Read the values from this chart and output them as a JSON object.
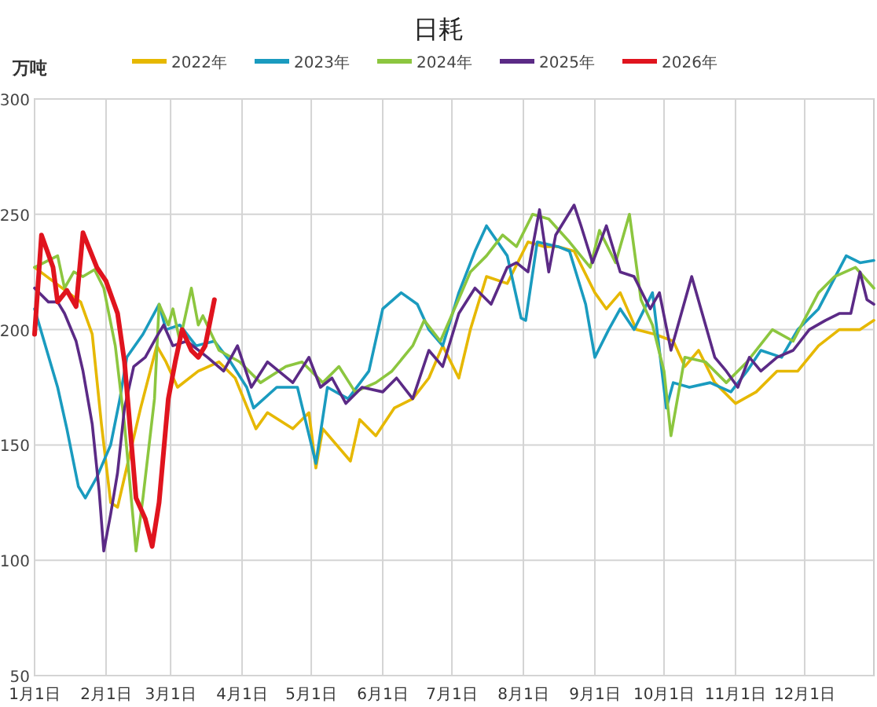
{
  "chart_data": {
    "type": "line",
    "title": "日耗",
    "ylabel": "万吨",
    "legend": "top",
    "grid": true,
    "xlim": [
      "--01-01",
      "--12-31"
    ],
    "ylim": [
      50,
      300
    ],
    "yticks": [
      50,
      100,
      150,
      200,
      250,
      300
    ],
    "xticks": [
      {
        "value": "--01-01",
        "label": "1月1日"
      },
      {
        "value": "--02-01",
        "label": "2月1日"
      },
      {
        "value": "--03-01",
        "label": "3月1日"
      },
      {
        "value": "--04-01",
        "label": "4月1日"
      },
      {
        "value": "--05-01",
        "label": "5月1日"
      },
      {
        "value": "--06-01",
        "label": "6月1日"
      },
      {
        "value": "--07-01",
        "label": "7月1日"
      },
      {
        "value": "--08-01",
        "label": "8月1日"
      },
      {
        "value": "--09-01",
        "label": "9月1日"
      },
      {
        "value": "--10-01",
        "label": "10月1日"
      },
      {
        "value": "--11-01",
        "label": "11月1日"
      },
      {
        "value": "--12-01",
        "label": "12月1日"
      }
    ],
    "series": [
      {
        "name": "2022年",
        "color": "#e6b800",
        "x": [
          "--01-01",
          "--01-21",
          "--01-26",
          "--01-30",
          "--02-03",
          "--02-06",
          "--02-09",
          "--02-16",
          "--02-23",
          "--02-27",
          "--03-04",
          "--03-13",
          "--03-22",
          "--03-29",
          "--04-07",
          "--04-12",
          "--04-23",
          "--04-30",
          "--05-03",
          "--05-06",
          "--05-18",
          "--05-22",
          "--05-29",
          "--06-06",
          "--06-14",
          "--06-21",
          "--06-27",
          "--07-04",
          "--07-09",
          "--07-16",
          "--07-25",
          "--08-03",
          "--08-10",
          "--08-16",
          "--08-23",
          "--09-01",
          "--09-06",
          "--09-12",
          "--09-19",
          "--09-27",
          "--10-05",
          "--10-10",
          "--10-16",
          "--10-23",
          "--11-01",
          "--11-10",
          "--11-19",
          "--11-28",
          "--12-07",
          "--12-16",
          "--12-25",
          "--12-31"
        ],
        "values": [
          227,
          212,
          198,
          159,
          125,
          123,
          136,
          166,
          193,
          186,
          175,
          182,
          186,
          179,
          157,
          164,
          157,
          164,
          140,
          157,
          143,
          161,
          154,
          166,
          170,
          179,
          193,
          179,
          200,
          223,
          220,
          238,
          236,
          236,
          234,
          216,
          209,
          216,
          200,
          198,
          195,
          184,
          191,
          177,
          168,
          173,
          182,
          182,
          193,
          200,
          200,
          204
        ]
      },
      {
        "name": "2023年",
        "color": "#1a9bbf",
        "x": [
          "--01-01",
          "--01-11",
          "--01-15",
          "--01-20",
          "--01-23",
          "--01-28",
          "--02-03",
          "--02-07",
          "--02-10",
          "--02-17",
          "--02-24",
          "--02-27",
          "--03-05",
          "--03-12",
          "--03-20",
          "--03-27",
          "--04-03",
          "--04-06",
          "--04-16",
          "--04-25",
          "--05-03",
          "--05-08",
          "--05-17",
          "--05-26",
          "--06-01",
          "--06-09",
          "--06-16",
          "--06-21",
          "--06-27",
          "--07-04",
          "--07-11",
          "--07-16",
          "--07-25",
          "--07-31",
          "--08-02",
          "--08-07",
          "--08-16",
          "--08-21",
          "--08-28",
          "--09-01",
          "--09-07",
          "--09-12",
          "--09-18",
          "--09-26",
          "--10-02",
          "--10-05",
          "--10-12",
          "--10-21",
          "--10-30",
          "--11-06",
          "--11-12",
          "--11-21",
          "--11-28",
          "--12-07",
          "--12-19",
          "--12-25",
          "--12-31"
        ],
        "values": [
          209,
          175,
          157,
          132,
          127,
          136,
          150,
          170,
          188,
          198,
          211,
          200,
          202,
          193,
          195,
          186,
          175,
          166,
          175,
          175,
          142,
          175,
          170,
          182,
          209,
          216,
          211,
          200,
          193,
          216,
          234,
          245,
          232,
          205,
          204,
          238,
          236,
          234,
          211,
          188,
          200,
          209,
          200,
          216,
          166,
          177,
          175,
          177,
          173,
          182,
          191,
          188,
          200,
          209,
          232,
          229,
          230
        ]
      },
      {
        "name": "2024年",
        "color": "#8cc63f",
        "x": [
          "--01-01",
          "--01-11",
          "--01-14",
          "--01-18",
          "--01-22",
          "--01-27",
          "--01-31",
          "--02-05",
          "--02-09",
          "--02-14",
          "--02-17",
          "--02-22",
          "--02-24",
          "--02-28",
          "--03-02",
          "--03-05",
          "--03-10",
          "--03-13",
          "--03-15",
          "--03-22",
          "--03-31",
          "--04-09",
          "--04-20",
          "--04-27",
          "--05-06",
          "--05-13",
          "--05-20",
          "--05-29",
          "--06-05",
          "--06-14",
          "--06-19",
          "--06-26",
          "--07-03",
          "--07-09",
          "--07-16",
          "--07-23",
          "--07-29",
          "--08-05",
          "--08-12",
          "--08-21",
          "--08-30",
          "--09-03",
          "--09-10",
          "--09-16",
          "--09-21",
          "--09-26",
          "--10-01",
          "--10-04",
          "--10-10",
          "--10-19",
          "--10-28",
          "--11-06",
          "--11-17",
          "--11-26",
          "--12-07",
          "--12-14",
          "--12-23",
          "--12-31"
        ],
        "values": [
          227,
          232,
          218,
          225,
          223,
          226,
          218,
          193,
          159,
          104,
          127,
          170,
          211,
          202,
          209,
          195,
          218,
          202,
          206,
          191,
          186,
          177,
          184,
          186,
          177,
          184,
          173,
          177,
          182,
          193,
          204,
          195,
          211,
          225,
          232,
          241,
          236,
          250,
          248,
          238,
          227,
          243,
          229,
          250,
          213,
          202,
          182,
          154,
          188,
          186,
          177,
          186,
          200,
          195,
          216,
          223,
          227,
          218
        ]
      },
      {
        "name": "2025年",
        "color": "#5b2a86",
        "x": [
          "--01-01",
          "--01-07",
          "--01-11",
          "--01-14",
          "--01-19",
          "--01-22",
          "--01-26",
          "--01-29",
          "--01-31",
          "--02-03",
          "--02-06",
          "--02-09",
          "--02-13",
          "--02-18",
          "--02-23",
          "--02-26",
          "--03-02",
          "--03-08",
          "--03-17",
          "--03-24",
          "--03-30",
          "--04-05",
          "--04-12",
          "--04-23",
          "--04-30",
          "--05-05",
          "--05-10",
          "--05-16",
          "--05-23",
          "--06-01",
          "--06-07",
          "--06-14",
          "--06-21",
          "--06-27",
          "--07-04",
          "--07-11",
          "--07-18",
          "--07-25",
          "--07-29",
          "--08-03",
          "--08-08",
          "--08-12",
          "--08-15",
          "--08-23",
          "--08-26",
          "--08-31",
          "--09-06",
          "--09-12",
          "--09-18",
          "--09-25",
          "--09-29",
          "--10-04",
          "--10-13",
          "--10-17",
          "--10-23",
          "--10-28",
          "--11-02",
          "--11-07",
          "--11-12",
          "--11-19",
          "--11-26",
          "--12-03",
          "--12-10",
          "--12-16",
          "--12-21",
          "--12-25",
          "--12-28",
          "--12-31"
        ],
        "values": [
          218,
          212,
          212,
          207,
          195,
          182,
          159,
          130,
          104,
          120,
          138,
          166,
          184,
          188,
          197,
          202,
          193,
          195,
          188,
          182,
          193,
          175,
          186,
          177,
          188,
          175,
          179,
          168,
          175,
          173,
          179,
          170,
          191,
          184,
          207,
          218,
          211,
          227,
          229,
          225,
          252,
          225,
          241,
          254,
          245,
          229,
          245,
          225,
          223,
          209,
          216,
          191,
          223,
          209,
          188,
          182,
          175,
          188,
          182,
          188,
          191,
          200,
          204,
          207,
          207,
          225,
          213,
          211
        ]
      },
      {
        "name": "2026年",
        "color": "#e0141e",
        "x": [
          "--01-01",
          "--01-04",
          "--01-09",
          "--01-11",
          "--01-15",
          "--01-19",
          "--01-22",
          "--01-28",
          "--02-01",
          "--02-06",
          "--02-09",
          "--02-14",
          "--02-18",
          "--02-21",
          "--02-24",
          "--02-28",
          "--03-03",
          "--03-06",
          "--03-10",
          "--03-13",
          "--03-16",
          "--03-20"
        ],
        "values": [
          198,
          241,
          227,
          212,
          217,
          210,
          242,
          227,
          221,
          207,
          186,
          127,
          118,
          106,
          125,
          170,
          186,
          200,
          191,
          188,
          193,
          213
        ]
      }
    ]
  }
}
